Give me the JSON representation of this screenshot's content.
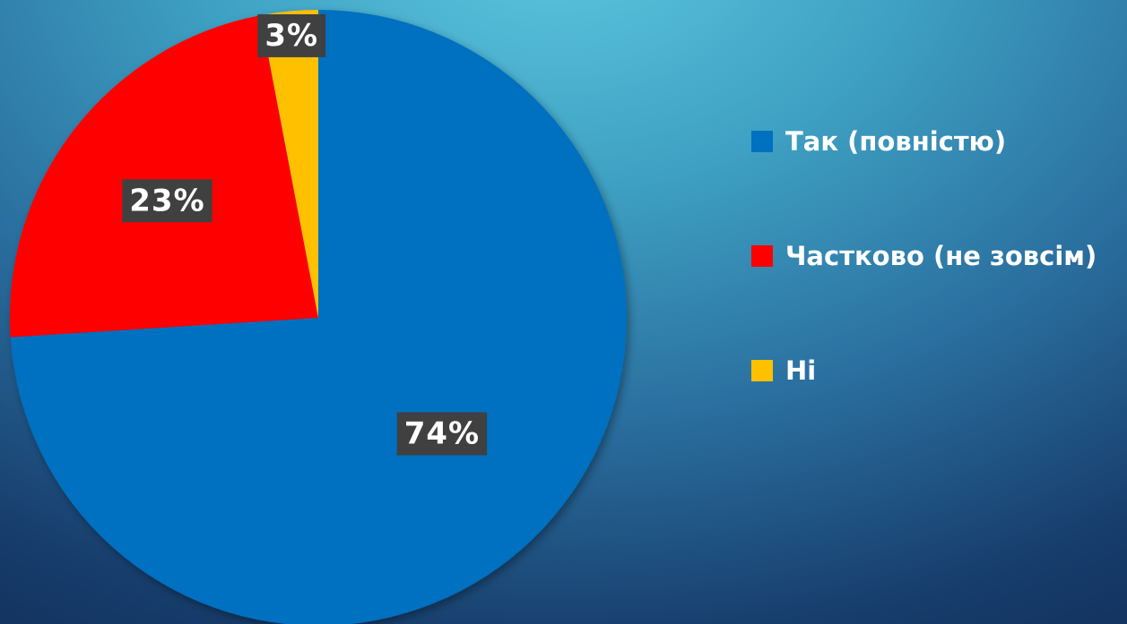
{
  "chart_data": {
    "type": "pie",
    "categories": [
      "Так (повністю)",
      "Частково (не зовсім)",
      "Ні"
    ],
    "values": [
      74,
      23,
      3
    ],
    "labels": [
      "74%",
      "23%",
      "3%"
    ],
    "colors": [
      "#0070C0",
      "#FF0000",
      "#FFC000"
    ],
    "legend_position": "right",
    "start_angle": "12 o'clock, clockwise"
  }
}
